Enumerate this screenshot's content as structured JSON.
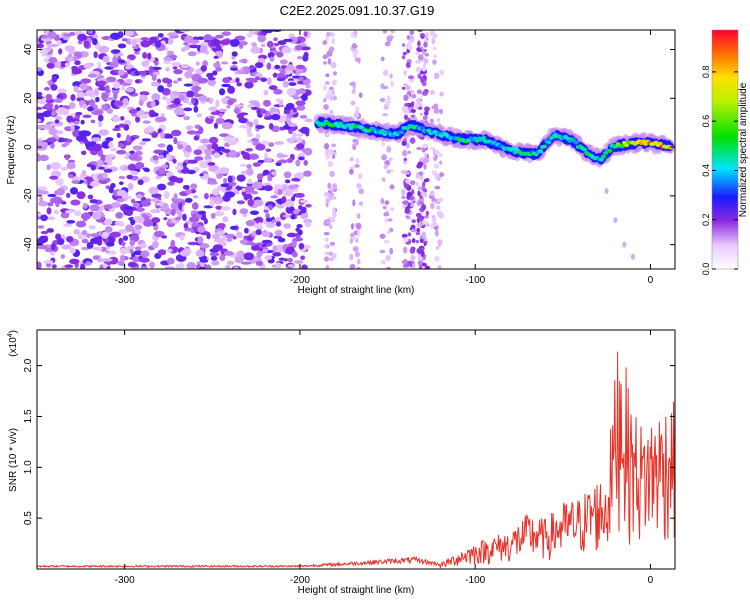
{
  "title": "C2E2.2025.091.10.37.G19",
  "chart_data": [
    {
      "type": "heatmap",
      "xlabel": "Height of straight line (km)",
      "ylabel": "Frequency (Hz)",
      "xlim": [
        -350,
        14
      ],
      "ylim": [
        -50,
        48
      ],
      "xticks": [
        -300,
        -200,
        -100,
        0
      ],
      "yticks": [
        -40,
        -20,
        0,
        20,
        40
      ],
      "colorbar": {
        "label": "Normalized spectral amplitude",
        "range": [
          0,
          0.97
        ],
        "ticks": [
          0.0,
          0.2,
          0.4,
          0.6,
          0.8
        ],
        "tick_labels": [
          "0.0",
          "0.2",
          "0.4",
          "0.6",
          "0.8"
        ]
      },
      "noise_region_x": [
        -350,
        -195
      ],
      "faint_streaks_x": [
        -190,
        -118
      ],
      "signal_track": [
        {
          "x": -190,
          "y": 10,
          "amp": 0.55
        },
        {
          "x": -175,
          "y": 9,
          "amp": 0.5
        },
        {
          "x": -160,
          "y": 7,
          "amp": 0.5
        },
        {
          "x": -145,
          "y": 5,
          "amp": 0.45
        },
        {
          "x": -137,
          "y": 9,
          "amp": 0.45
        },
        {
          "x": -120,
          "y": 5,
          "amp": 0.45
        },
        {
          "x": -105,
          "y": 3,
          "amp": 0.5
        },
        {
          "x": -95,
          "y": 3,
          "amp": 0.45
        },
        {
          "x": -85,
          "y": 0,
          "amp": 0.45
        },
        {
          "x": -75,
          "y": -2,
          "amp": 0.5
        },
        {
          "x": -65,
          "y": -3,
          "amp": 0.45
        },
        {
          "x": -55,
          "y": 5,
          "amp": 0.45
        },
        {
          "x": -45,
          "y": 3,
          "amp": 0.5
        },
        {
          "x": -35,
          "y": -3,
          "amp": 0.5
        },
        {
          "x": -28,
          "y": -5,
          "amp": 0.45
        },
        {
          "x": -22,
          "y": 0,
          "amp": 0.55
        },
        {
          "x": -15,
          "y": 1,
          "amp": 0.7
        },
        {
          "x": -5,
          "y": 2,
          "amp": 0.85
        },
        {
          "x": 5,
          "y": 1,
          "amp": 0.95
        },
        {
          "x": 12,
          "y": 0,
          "amp": 0.75
        }
      ]
    },
    {
      "type": "line",
      "xlabel": "Height of straight line (km)",
      "ylabel": "SNR (10 * v/v)",
      "y_multiplier": "(x10",
      "y_multiplier_exp": "4",
      "xlim": [
        -350,
        14
      ],
      "ylim": [
        0,
        2.35
      ],
      "xticks": [
        -300,
        -200,
        -100,
        0
      ],
      "yticks": [
        0.5,
        1.0,
        1.5,
        2.0
      ],
      "ytick_labels": [
        "0.5",
        "1.0",
        "1.5",
        "2.0"
      ],
      "series": [
        {
          "color": "#e8332a",
          "envelope": [
            {
              "x": -350,
              "y": 0.03
            },
            {
              "x": -200,
              "y": 0.03
            },
            {
              "x": -170,
              "y": 0.06
            },
            {
              "x": -135,
              "y": 0.1
            },
            {
              "x": -120,
              "y": 0.05
            },
            {
              "x": -105,
              "y": 0.2
            },
            {
              "x": -90,
              "y": 0.3
            },
            {
              "x": -80,
              "y": 0.35
            },
            {
              "x": -70,
              "y": 0.5
            },
            {
              "x": -60,
              "y": 0.45
            },
            {
              "x": -50,
              "y": 0.6
            },
            {
              "x": -40,
              "y": 0.65
            },
            {
              "x": -32,
              "y": 0.8
            },
            {
              "x": -25,
              "y": 0.85
            },
            {
              "x": -20,
              "y": 1.8
            },
            {
              "x": -18,
              "y": 2.35
            },
            {
              "x": -12,
              "y": 1.55
            },
            {
              "x": -5,
              "y": 1.3
            },
            {
              "x": 5,
              "y": 1.45
            },
            {
              "x": 12,
              "y": 1.55
            }
          ]
        }
      ]
    }
  ]
}
